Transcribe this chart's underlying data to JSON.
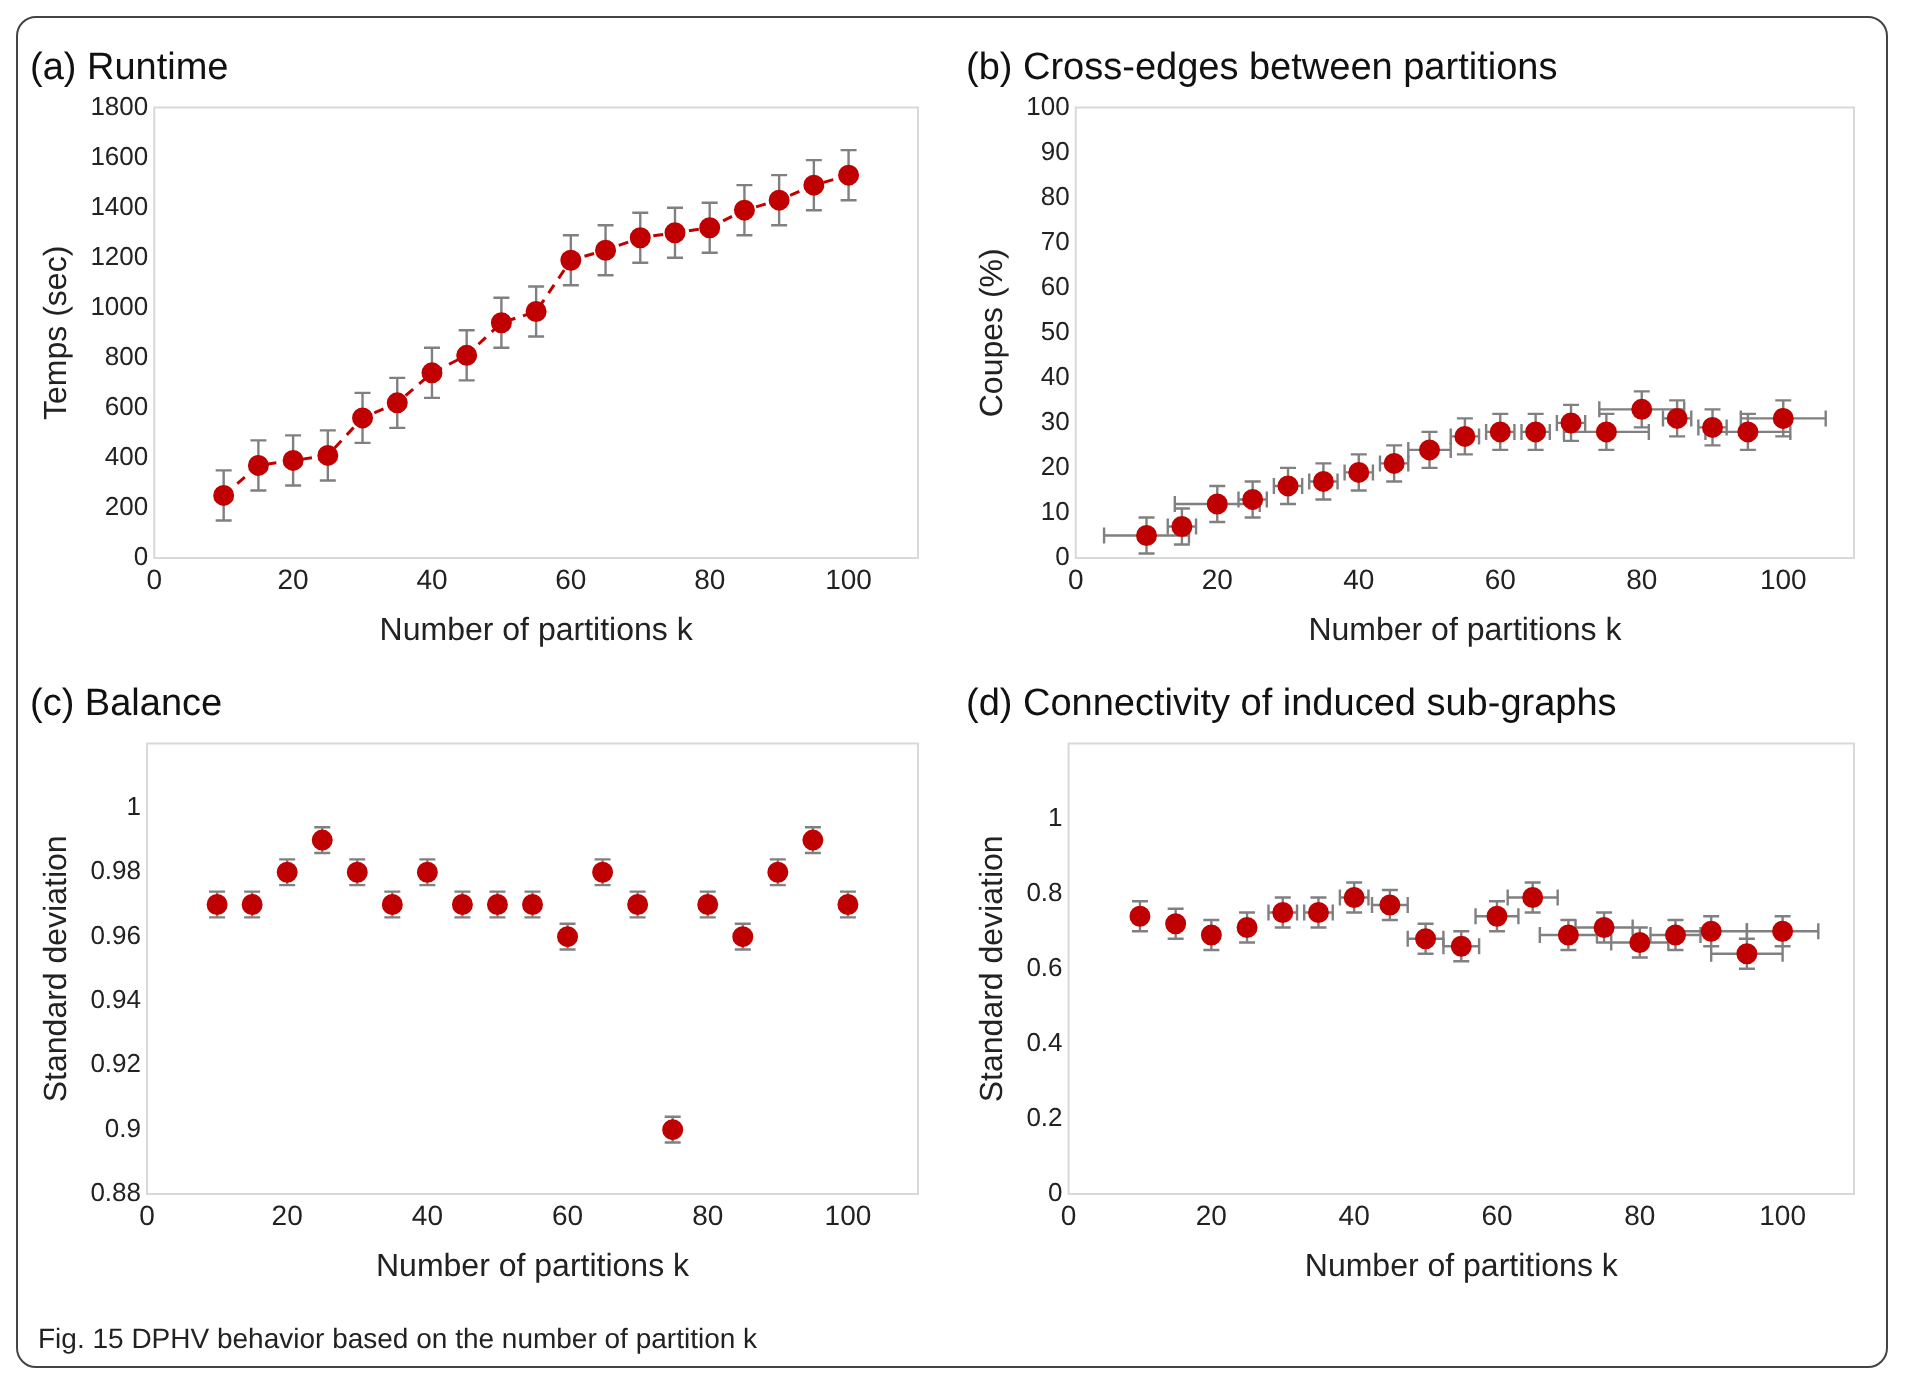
{
  "chart_data": [
    {
      "type": "line",
      "title": "(a) Runtime",
      "xlabel": "Number of partitions k",
      "ylabel": "Temps (sec)",
      "x": [
        10,
        15,
        20,
        25,
        30,
        35,
        40,
        45,
        50,
        55,
        60,
        65,
        70,
        75,
        80,
        85,
        90,
        95,
        100
      ],
      "values": [
        250,
        370,
        390,
        410,
        560,
        620,
        740,
        810,
        940,
        985,
        1190,
        1230,
        1280,
        1300,
        1320,
        1390,
        1430,
        1490,
        1530
      ],
      "errors": [
        100,
        100,
        100,
        100,
        100,
        100,
        100,
        100,
        100,
        100,
        100,
        100,
        100,
        100,
        100,
        100,
        100,
        100,
        100
      ],
      "color": "#c00000",
      "line_style": "dashed",
      "marker": "circle",
      "grid": false,
      "legend": false,
      "xlim": [
        0,
        110
      ],
      "xticks": [
        0,
        20,
        40,
        60,
        80,
        100
      ],
      "ylim": [
        0,
        1800
      ],
      "yticks": [
        0,
        200,
        400,
        600,
        800,
        1000,
        1200,
        1400,
        1600,
        1800
      ]
    },
    {
      "type": "scatter",
      "title": "(b) Cross-edges between partitions",
      "xlabel": "Number of partitions k",
      "ylabel": "Coupes (%)",
      "x": [
        10,
        15,
        20,
        25,
        30,
        35,
        40,
        45,
        50,
        55,
        60,
        65,
        70,
        75,
        80,
        85,
        90,
        95,
        100
      ],
      "values": [
        5,
        7,
        12,
        13,
        16,
        17,
        19,
        21,
        24,
        27,
        28,
        28,
        30,
        28,
        33,
        31,
        29,
        28,
        31
      ],
      "errors": [
        4,
        4,
        4,
        4,
        4,
        4,
        4,
        4,
        4,
        4,
        4,
        4,
        4,
        4,
        4,
        4,
        4,
        4,
        4
      ],
      "xerrors": [
        6,
        2,
        6,
        2,
        2,
        2,
        2,
        2,
        3,
        2,
        2,
        2,
        2,
        6,
        6,
        2,
        2,
        6,
        6
      ],
      "color": "#c00000",
      "marker": "circle",
      "grid": false,
      "legend": false,
      "xlim": [
        0,
        110
      ],
      "xticks": [
        0,
        20,
        40,
        60,
        80,
        100
      ],
      "ylim": [
        0,
        100
      ],
      "yticks": [
        0,
        10,
        20,
        30,
        40,
        50,
        60,
        70,
        80,
        90,
        100
      ]
    },
    {
      "type": "scatter",
      "title": "(c) Balance",
      "xlabel": "Number of partitions k",
      "ylabel": "Standard deviation",
      "x": [
        10,
        15,
        20,
        25,
        30,
        35,
        40,
        45,
        50,
        55,
        60,
        65,
        70,
        75,
        80,
        85,
        90,
        95,
        100
      ],
      "values": [
        0.97,
        0.97,
        0.98,
        0.99,
        0.98,
        0.97,
        0.98,
        0.97,
        0.97,
        0.97,
        0.96,
        0.98,
        0.97,
        0.9,
        0.97,
        0.96,
        0.98,
        0.99,
        0.97
      ],
      "errors": [
        0.004,
        0.004,
        0.004,
        0.004,
        0.004,
        0.004,
        0.004,
        0.004,
        0.004,
        0.004,
        0.004,
        0.004,
        0.004,
        0.004,
        0.004,
        0.004,
        0.004,
        0.004,
        0.004
      ],
      "color": "#c00000",
      "marker": "circle",
      "grid": false,
      "legend": false,
      "xlim": [
        0,
        110
      ],
      "xticks": [
        0,
        20,
        40,
        60,
        80,
        100
      ],
      "ylim": [
        0.88,
        1.02
      ],
      "yticks": [
        0.88,
        0.9,
        0.92,
        0.94,
        0.96,
        0.98,
        1
      ]
    },
    {
      "type": "scatter",
      "title": "(d) Connectivity of induced sub-graphs",
      "xlabel": "Number of partitions k",
      "ylabel": "Standard deviation",
      "x": [
        10,
        15,
        20,
        25,
        30,
        35,
        40,
        45,
        50,
        55,
        60,
        65,
        70,
        75,
        80,
        85,
        90,
        95,
        100
      ],
      "values": [
        0.74,
        0.72,
        0.69,
        0.71,
        0.75,
        0.75,
        0.79,
        0.77,
        0.68,
        0.66,
        0.74,
        0.79,
        0.69,
        0.71,
        0.67,
        0.69,
        0.7,
        0.64,
        0.7
      ],
      "errors": [
        0.04,
        0.04,
        0.04,
        0.04,
        0.04,
        0.04,
        0.04,
        0.04,
        0.04,
        0.04,
        0.04,
        0.04,
        0.04,
        0.04,
        0.04,
        0.04,
        0.04,
        0.04,
        0.04
      ],
      "xerrors": [
        null,
        null,
        null,
        null,
        2,
        2,
        2,
        2.5,
        2.5,
        2.5,
        3,
        3.5,
        4,
        4,
        4,
        3.5,
        5,
        5,
        5
      ],
      "color": "#c00000",
      "marker": "circle",
      "grid": false,
      "legend": false,
      "xlim": [
        0,
        110
      ],
      "xticks": [
        0,
        20,
        40,
        60,
        80,
        100
      ],
      "ylim": [
        0,
        1.2
      ],
      "yticks": [
        0,
        0.2,
        0.4,
        0.6,
        0.8,
        1
      ],
      "annotations": [
        "Fig. 15 DPHV behavior based on the number of partition k"
      ]
    }
  ]
}
